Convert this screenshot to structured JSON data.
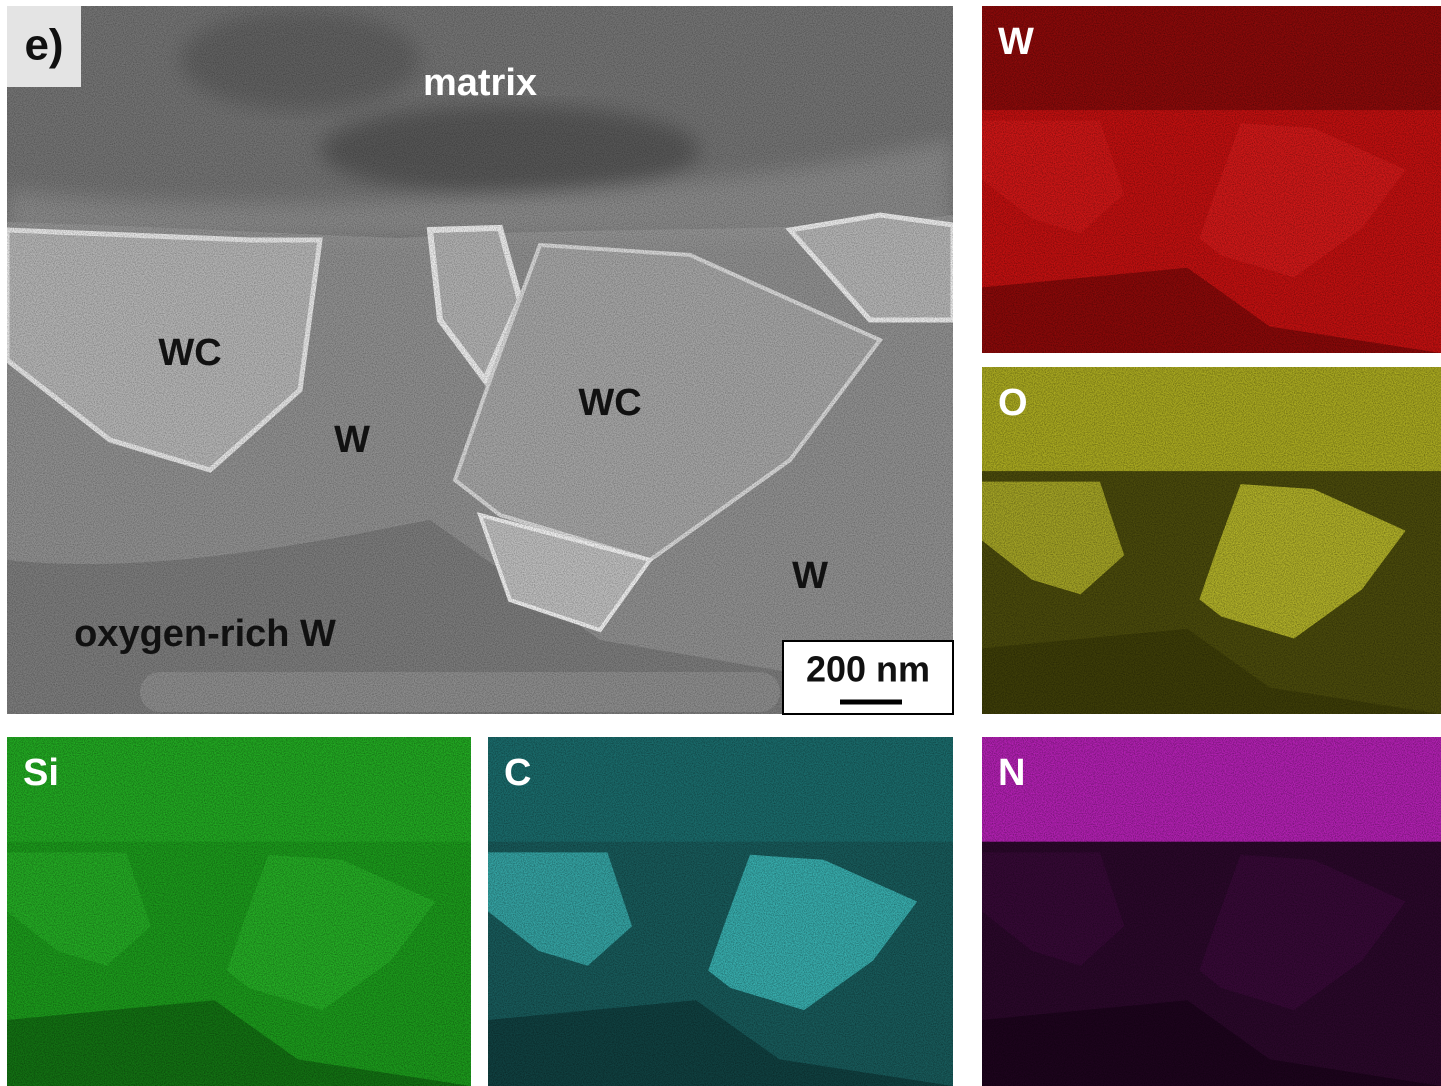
{
  "panel_label": "e)",
  "sem": {
    "labels": [
      "matrix",
      "WC",
      "WC",
      "W",
      "W",
      "oxygen-rich W"
    ],
    "scale_bar": "200 nm"
  },
  "maps": [
    "W",
    "O",
    "Si",
    "C",
    "N"
  ]
}
